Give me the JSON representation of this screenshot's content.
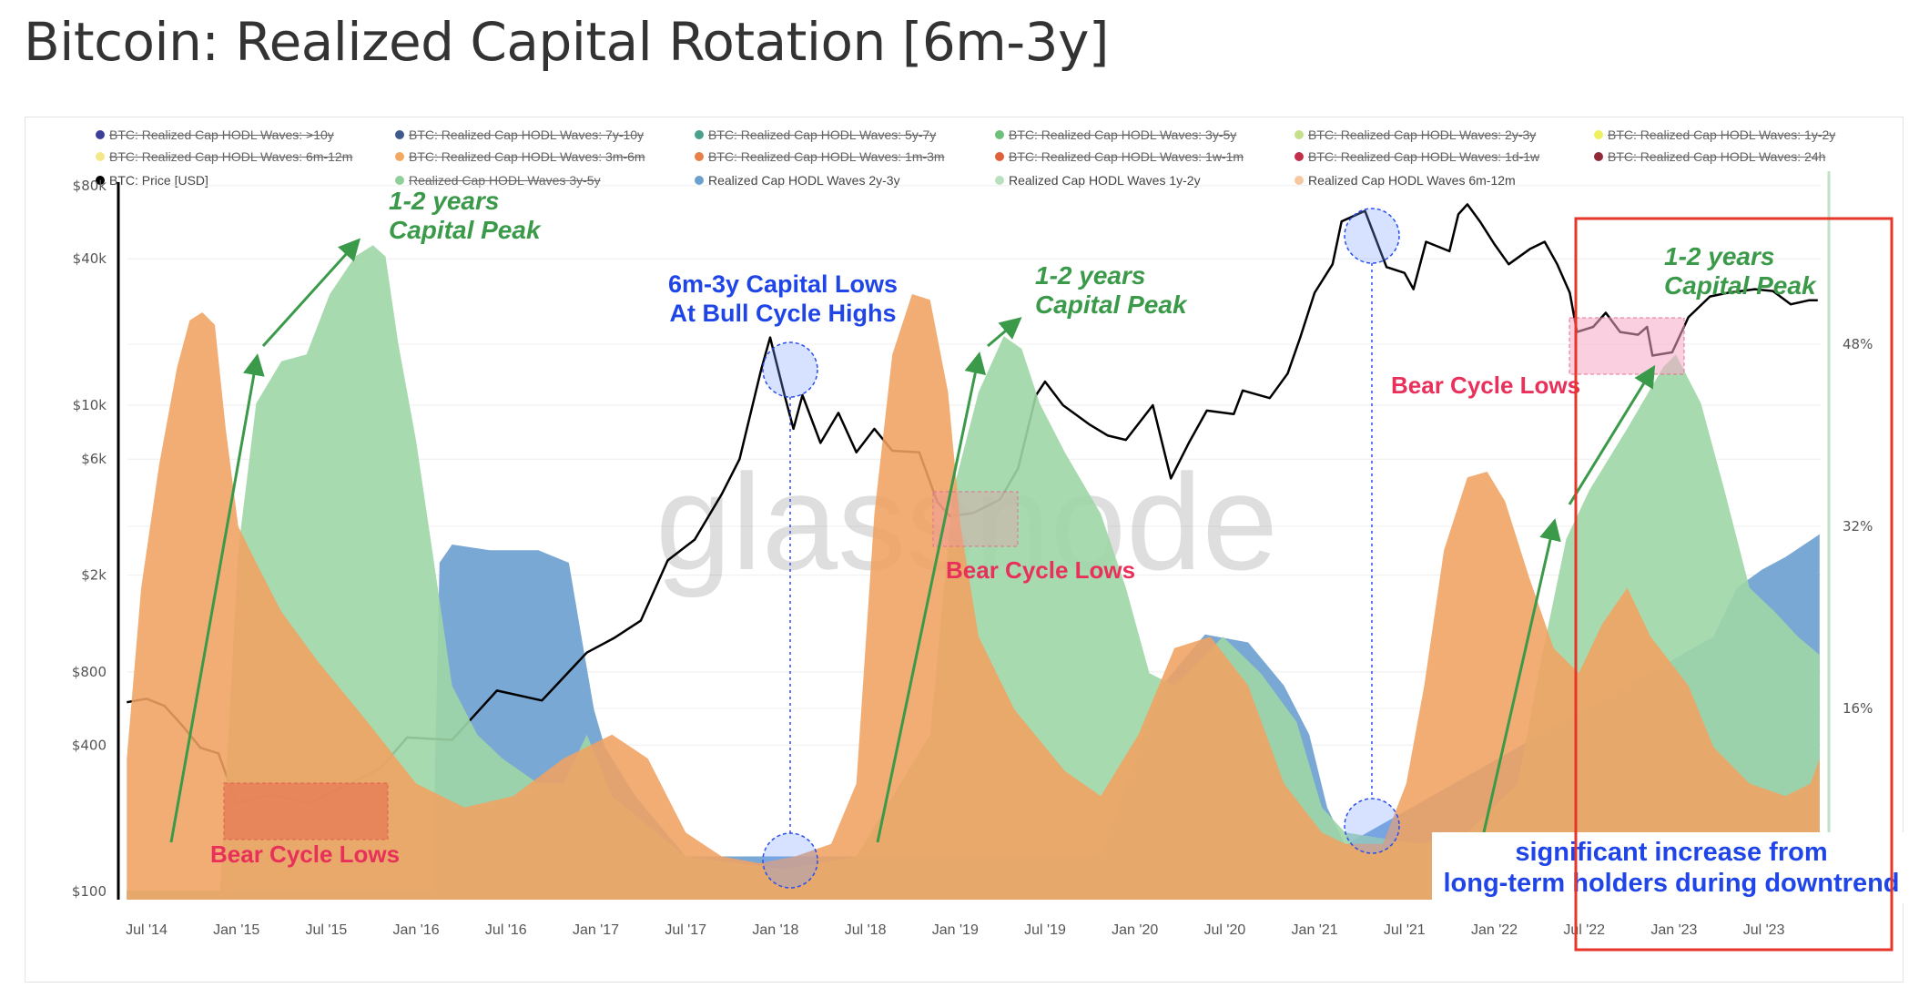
{
  "title": "Bitcoin: Realized Capital Rotation [6m-3y]",
  "legend": [
    {
      "label": "BTC: Realized Cap HODL Waves: >10y",
      "color": "#3b3f9a",
      "hidden": true
    },
    {
      "label": "BTC: Realized Cap HODL Waves: 7y-10y",
      "color": "#3e5a8c",
      "hidden": true
    },
    {
      "label": "BTC: Realized Cap HODL Waves: 5y-7y",
      "color": "#4aa08a",
      "hidden": true
    },
    {
      "label": "BTC: Realized Cap HODL Waves: 3y-5y",
      "color": "#6cc07a",
      "hidden": true
    },
    {
      "label": "BTC: Realized Cap HODL Waves: 2y-3y",
      "color": "#c5e08a",
      "hidden": true
    },
    {
      "label": "BTC: Realized Cap HODL Waves: 1y-2y",
      "color": "#eef060",
      "hidden": true
    },
    {
      "label": "BTC: Realized Cap HODL Waves: 6m-12m",
      "color": "#f5e88a",
      "hidden": true
    },
    {
      "label": "BTC: Realized Cap HODL Waves: 3m-6m",
      "color": "#f2a860",
      "hidden": true
    },
    {
      "label": "BTC: Realized Cap HODL Waves: 1m-3m",
      "color": "#e8804a",
      "hidden": true
    },
    {
      "label": "BTC: Realized Cap HODL Waves: 1w-1m",
      "color": "#e0603a",
      "hidden": true
    },
    {
      "label": "BTC: Realized Cap HODL Waves: 1d-1w",
      "color": "#c0304a",
      "hidden": true
    },
    {
      "label": "BTC: Realized Cap HODL Waves: 24h",
      "color": "#902838",
      "hidden": true
    },
    {
      "label": "BTC: Price [USD]",
      "color": "#000000",
      "hidden": false
    },
    {
      "label": "Realized Cap HODL Waves 3y-5y",
      "color": "#8fd09a",
      "hidden": true
    },
    {
      "label": "Realized Cap HODL Waves 2y-3y",
      "color": "#6a9fd0",
      "hidden": false
    },
    {
      "label": "Realized Cap HODL Waves 1y-2y",
      "color": "#b8e0c0",
      "hidden": false
    },
    {
      "label": "Realized Cap HODL Waves 6m-12m",
      "color": "#f5c8a0",
      "hidden": false
    }
  ],
  "watermark": "glassnode",
  "chart_data": {
    "type": "area",
    "title": "Bitcoin: Realized Capital Rotation [6m-3y]",
    "x_type": "date (decimal year)",
    "left_axis": {
      "scale": "log",
      "ticks": [
        "$80k",
        "$40k",
        "$10k",
        "$6k",
        "$2k",
        "$800",
        "$400",
        "$100"
      ],
      "tick_values": [
        80000,
        40000,
        10000,
        6000,
        2000,
        800,
        400,
        100
      ],
      "range": [
        100,
        80000
      ]
    },
    "right_axis": {
      "ticks": [
        "48%",
        "32%",
        "16%"
      ],
      "tick_values": [
        48,
        32,
        16
      ],
      "range": [
        0,
        62
      ]
    },
    "x_ticks": [
      "Jul '14",
      "Jan '15",
      "Jul '15",
      "Jan '16",
      "Jul '16",
      "Jan '17",
      "Jul '17",
      "Jan '18",
      "Jul '18",
      "Jan '19",
      "Jul '19",
      "Jan '20",
      "Jul '20",
      "Jan '21",
      "Jul '21",
      "Jan '22",
      "Jul '22",
      "Jan '23",
      "Jul '23"
    ],
    "x_tick_values": [
      2014.5,
      2015.0,
      2015.5,
      2016.0,
      2016.5,
      2017.0,
      2017.5,
      2018.0,
      2018.5,
      2019.0,
      2019.5,
      2020.0,
      2020.5,
      2021.0,
      2021.5,
      2022.0,
      2022.5,
      2023.0,
      2023.5
    ],
    "grid": true,
    "legend_placement": "top",
    "series": [
      {
        "name": "Realized Cap HODL Waves 2y-3y",
        "axis": "right",
        "color": "#6a9fcf",
        "x": [
          2014.39,
          2016.09,
          2016.13,
          2016.2,
          2016.41,
          2016.68,
          2016.85,
          2016.92,
          2016.99,
          2017.05,
          2017.22,
          2017.5,
          2019.81,
          2020.15,
          2020.39,
          2020.63,
          2020.83,
          2020.97,
          2021.07,
          2021.17,
          2023.22,
          2023.35,
          2023.49,
          2023.62,
          2023.81
        ],
        "y": [
          0,
          0,
          28.8,
          30.4,
          29.9,
          29.9,
          28.8,
          22.3,
          15.9,
          12.6,
          8.3,
          3.0,
          3.0,
          18.0,
          22.5,
          21.8,
          18.0,
          13.7,
          7.3,
          4.0,
          22.3,
          26.6,
          28.2,
          29.3,
          31.3
        ]
      },
      {
        "name": "Realized Cap HODL Waves 1y-2y",
        "axis": "right",
        "color": "#9fd6a6",
        "x": [
          2014.39,
          2014.91,
          2015.01,
          2015.11,
          2015.25,
          2015.39,
          2015.52,
          2015.66,
          2015.76,
          2015.83,
          2015.9,
          2016.0,
          2016.1,
          2016.2,
          2016.34,
          2016.48,
          2016.68,
          2016.82,
          2016.95,
          2017.09,
          2017.5,
          2018.04,
          2018.45,
          2018.86,
          2018.99,
          2019.13,
          2019.27,
          2019.37,
          2019.47,
          2019.61,
          2019.81,
          2019.95,
          2020.08,
          2020.22,
          2020.36,
          2020.49,
          2020.7,
          2020.9,
          2021.04,
          2021.17,
          2021.58,
          2021.85,
          2022.13,
          2022.26,
          2022.4,
          2022.53,
          2022.74,
          2022.94,
          2023.01,
          2023.15,
          2023.28,
          2023.42,
          2023.56,
          2023.69,
          2023.81
        ],
        "y": [
          0,
          0,
          29.9,
          42.8,
          46.5,
          47.1,
          52.4,
          55.7,
          56.7,
          55.7,
          48.1,
          39.5,
          28.8,
          18.0,
          13.7,
          11.6,
          9.4,
          9.4,
          13.7,
          8.3,
          3.0,
          1.9,
          3.0,
          13.7,
          35.2,
          43.8,
          48.7,
          47.6,
          42.8,
          38.5,
          33.1,
          26.6,
          19.1,
          18.0,
          20.2,
          22.3,
          19.1,
          14.8,
          7.3,
          5.1,
          4.1,
          5.1,
          9.4,
          20.2,
          30.9,
          35.2,
          40.6,
          46.0,
          47.1,
          42.8,
          35.2,
          26.6,
          24.5,
          22.3,
          20.7
        ]
      },
      {
        "name": "Realized Cap HODL Waves 6m-12m",
        "axis": "right",
        "color": "#f0a262",
        "x": [
          2014.39,
          2014.47,
          2014.57,
          2014.67,
          2014.74,
          2014.81,
          2014.88,
          2014.94,
          2015.01,
          2015.11,
          2015.25,
          2015.45,
          2015.73,
          2016.0,
          2016.27,
          2016.54,
          2016.82,
          2017.09,
          2017.29,
          2017.5,
          2017.7,
          2017.91,
          2018.11,
          2018.31,
          2018.45,
          2018.55,
          2018.65,
          2018.76,
          2018.86,
          2018.96,
          2019.03,
          2019.13,
          2019.33,
          2019.61,
          2019.81,
          2020.02,
          2020.22,
          2020.42,
          2020.63,
          2020.83,
          2021.04,
          2021.17,
          2021.38,
          2021.51,
          2021.61,
          2021.72,
          2021.85,
          2021.96,
          2022.06,
          2022.19,
          2022.33,
          2022.47,
          2022.6,
          2022.74,
          2022.87,
          2023.08,
          2023.22,
          2023.42,
          2023.62,
          2023.76,
          2023.81
        ],
        "y": [
          11.6,
          26.6,
          37.4,
          46.0,
          50.1,
          50.8,
          49.7,
          40.6,
          32.0,
          28.8,
          24.5,
          20.2,
          14.8,
          9.4,
          7.3,
          8.3,
          11.6,
          13.7,
          11.6,
          5.1,
          3.0,
          2.4,
          3.0,
          4.1,
          9.4,
          33.1,
          47.1,
          52.4,
          51.9,
          43.8,
          32.0,
          22.3,
          15.9,
          10.5,
          8.3,
          13.7,
          21.3,
          22.3,
          18.0,
          9.4,
          5.1,
          4.1,
          4.1,
          9.4,
          18.0,
          29.9,
          36.3,
          36.8,
          34.2,
          27.7,
          21.3,
          19.1,
          23.4,
          26.6,
          22.3,
          18.0,
          12.6,
          9.4,
          8.3,
          9.4,
          11.6
        ]
      },
      {
        "name": "BTC: Price [USD]",
        "axis": "left",
        "color": "#000000",
        "x": [
          2014.39,
          2014.5,
          2014.6,
          2014.7,
          2014.8,
          2014.9,
          2015.0,
          2015.2,
          2015.4,
          2015.6,
          2015.8,
          2015.95,
          2016.2,
          2016.45,
          2016.7,
          2016.95,
          2017.1,
          2017.25,
          2017.4,
          2017.55,
          2017.7,
          2017.8,
          2017.92,
          2017.97,
          2018.05,
          2018.1,
          2018.15,
          2018.25,
          2018.35,
          2018.45,
          2018.55,
          2018.65,
          2018.8,
          2018.9,
          2018.97,
          2019.1,
          2019.25,
          2019.35,
          2019.45,
          2019.5,
          2019.6,
          2019.75,
          2019.85,
          2019.95,
          2020.1,
          2020.2,
          2020.3,
          2020.4,
          2020.55,
          2020.6,
          2020.75,
          2020.85,
          2020.92,
          2021.0,
          2021.1,
          2021.15,
          2021.28,
          2021.4,
          2021.5,
          2021.55,
          2021.62,
          2021.75,
          2021.8,
          2021.85,
          2021.92,
          2022.0,
          2022.08,
          2022.2,
          2022.28,
          2022.35,
          2022.42,
          2022.46,
          2022.55,
          2022.62,
          2022.7,
          2022.8,
          2022.85,
          2022.88,
          2022.99,
          2023.08,
          2023.2,
          2023.3,
          2023.45,
          2023.55,
          2023.65,
          2023.75,
          2023.8
        ],
        "y": [
          600,
          620,
          580,
          480,
          390,
          370,
          230,
          250,
          230,
          270,
          320,
          430,
          420,
          670,
          610,
          960,
          1100,
          1300,
          2300,
          2800,
          4300,
          6000,
          14000,
          19000,
          11000,
          8000,
          11000,
          7000,
          9300,
          6400,
          8000,
          6500,
          6400,
          4000,
          3500,
          3600,
          4100,
          5500,
          11000,
          12500,
          10000,
          8300,
          7500,
          7200,
          10000,
          5000,
          7000,
          9500,
          9200,
          11500,
          10700,
          13500,
          19000,
          29000,
          38000,
          57000,
          63000,
          37000,
          35000,
          30000,
          47000,
          43000,
          61000,
          67000,
          57000,
          46000,
          38000,
          44000,
          47000,
          38000,
          29000,
          20000,
          21000,
          24000,
          20000,
          19500,
          21000,
          16000,
          16500,
          23000,
          28000,
          29000,
          30000,
          29500,
          26000,
          27000,
          27000
        ]
      }
    ],
    "annotations": {
      "peak1": [
        "1-2 years",
        "Capital Peak"
      ],
      "lows_highs": [
        "6m-3y Capital Lows",
        "At Bull Cycle Highs"
      ],
      "peak2": [
        "1-2 years",
        "Capital Peak"
      ],
      "peak3": [
        "1-2 years",
        "Capital Peak"
      ],
      "bear1": "Bear Cycle Lows",
      "bear2": "Bear Cycle Lows",
      "bear3": "Bear Cycle Lows",
      "callout": [
        "significant increase from",
        "long-term holders during downtrend"
      ]
    }
  }
}
